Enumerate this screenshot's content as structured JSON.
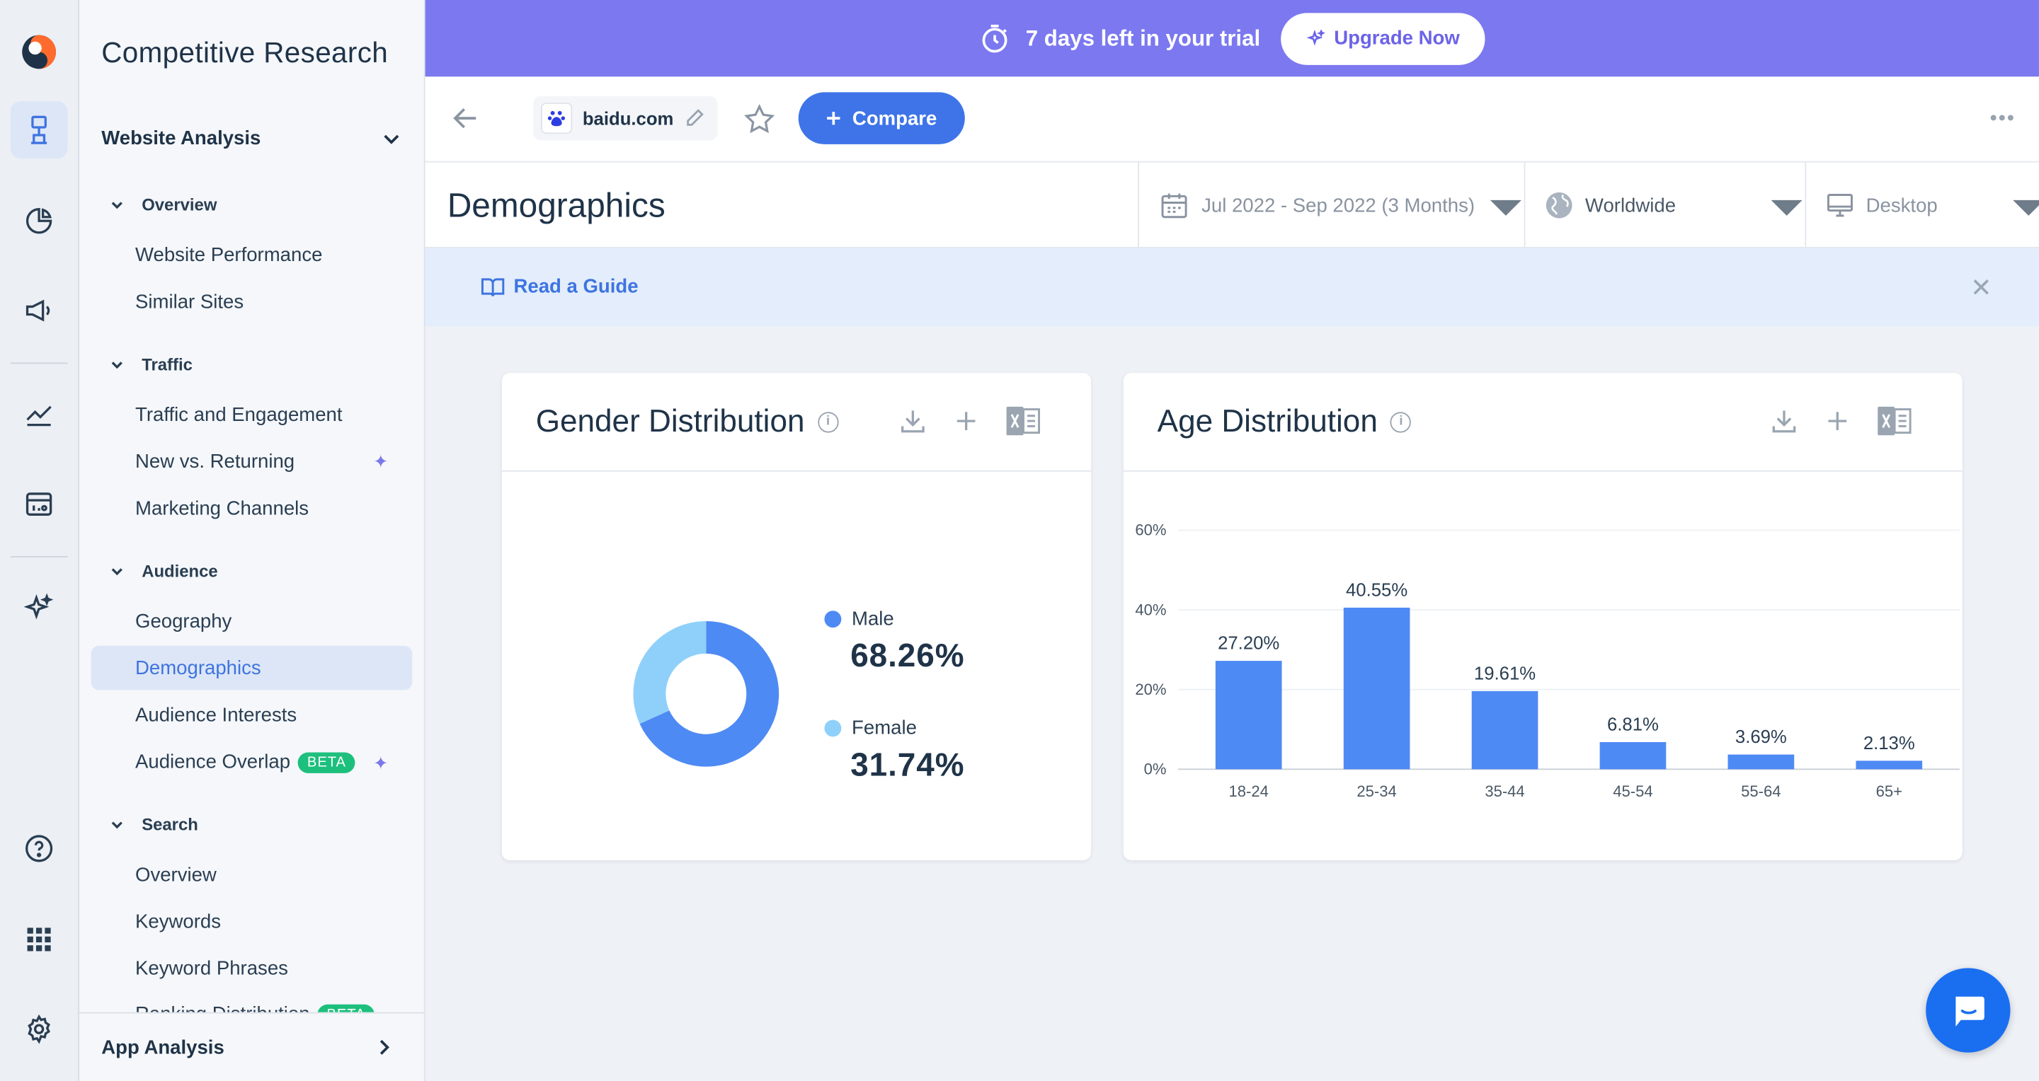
{
  "banner": {
    "trial_text": "7 days left in your trial",
    "upgrade_label": "Upgrade Now"
  },
  "nav": {
    "title": "Competitive Research",
    "section": "Website Analysis",
    "groups": [
      {
        "label": "Overview",
        "items": [
          "Website Performance",
          "Similar Sites"
        ]
      },
      {
        "label": "Traffic",
        "items": [
          "Traffic and Engagement",
          "New vs. Returning",
          "Marketing Channels"
        ]
      },
      {
        "label": "Audience",
        "items": [
          "Geography",
          "Demographics",
          "Audience Interests",
          "Audience Overlap"
        ]
      },
      {
        "label": "Search",
        "items": [
          "Overview",
          "Keywords",
          "Keyword Phrases",
          "Ranking Distribution"
        ]
      }
    ],
    "beta": "BETA",
    "bottom": "App Analysis",
    "active_item": "Demographics"
  },
  "toolbar": {
    "domain": "baidu.com",
    "compare_label": "Compare"
  },
  "header": {
    "page_title": "Demographics",
    "date_range": "Jul 2022 - Sep 2022 (3 Months)",
    "region": "Worldwide",
    "device": "Desktop"
  },
  "guide": {
    "label": "Read a Guide"
  },
  "gender_card": {
    "title": "Gender Distribution",
    "male_label": "Male",
    "male_value": "68.26%",
    "female_label": "Female",
    "female_value": "31.74%",
    "colors": {
      "male": "#4e8af4",
      "female": "#8fd0fb"
    }
  },
  "age_card": {
    "title": "Age Distribution"
  },
  "chart_data": [
    {
      "type": "pie",
      "title": "Gender Distribution",
      "categories": [
        "Male",
        "Female"
      ],
      "values": [
        68.26,
        31.74
      ],
      "colors": [
        "#4e8af4",
        "#8fd0fb"
      ]
    },
    {
      "type": "bar",
      "title": "Age Distribution",
      "categories": [
        "18-24",
        "25-34",
        "35-44",
        "45-54",
        "55-64",
        "65+"
      ],
      "values": [
        27.2,
        40.55,
        19.61,
        6.81,
        3.69,
        2.13
      ],
      "data_labels": [
        "27.20%",
        "40.55%",
        "19.61%",
        "6.81%",
        "3.69%",
        "2.13%"
      ],
      "yticks": [
        "0%",
        "20%",
        "40%",
        "60%"
      ],
      "ylim": [
        0,
        60
      ],
      "grid": true,
      "color": "#4e8af4"
    }
  ]
}
